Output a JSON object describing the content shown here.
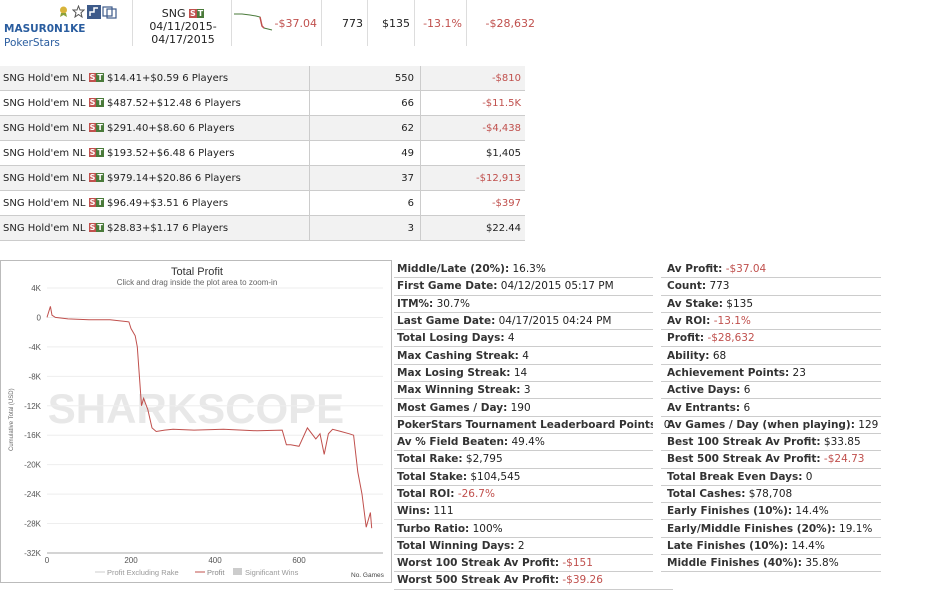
{
  "header": {
    "player_name": "MASUR0N1KE",
    "network": "PokerStars",
    "game_type": "SNG",
    "badge": [
      "S",
      "T"
    ],
    "date_from": "04/11/2015-",
    "date_to": "04/17/2015",
    "av_profit": "-$37.04",
    "count": "773",
    "av_stake": "$135",
    "av_roi": "-13.1%",
    "profit": "-$28,632"
  },
  "games": [
    {
      "name": "SNG Hold'em NL",
      "stake": "$14.41+$0.59 6 Players",
      "count": "550",
      "profit": "-$810",
      "negative": true
    },
    {
      "name": "SNG Hold'em NL",
      "stake": "$487.52+$12.48 6 Players",
      "count": "66",
      "profit": "-$11.5K",
      "negative": true
    },
    {
      "name": "SNG Hold'em NL",
      "stake": "$291.40+$8.60 6 Players",
      "count": "62",
      "profit": "-$4,438",
      "negative": true
    },
    {
      "name": "SNG Hold'em NL",
      "stake": "$193.52+$6.48 6 Players",
      "count": "49",
      "profit": "$1,405",
      "negative": false
    },
    {
      "name": "SNG Hold'em NL",
      "stake": "$979.14+$20.86 6 Players",
      "count": "37",
      "profit": "-$12,913",
      "negative": true
    },
    {
      "name": "SNG Hold'em NL",
      "stake": "$96.49+$3.51 6 Players",
      "count": "6",
      "profit": "-$397",
      "negative": true
    },
    {
      "name": "SNG Hold'em NL",
      "stake": "$28.83+$1.17 6 Players",
      "count": "3",
      "profit": "$22.44",
      "negative": false
    }
  ],
  "chart": {
    "title": "Total Profit",
    "subtitle": "Click and drag inside the plot area to zoom-in",
    "ylabel": "Cumulative Total (USD)",
    "watermark": "SHARKSCOPE",
    "xaxis_note": "No. Games",
    "legend": [
      "Profit Excluding Rake",
      "Profit",
      "Significant Wins"
    ],
    "y_ticks": [
      "4K",
      "0",
      "-4K",
      "-8K",
      "-12K",
      "-16K",
      "-20K",
      "-24K",
      "-28K",
      "-32K"
    ],
    "x_ticks": [
      "0",
      "200",
      "400",
      "600"
    ]
  },
  "chart_data": {
    "type": "line",
    "title": "Total Profit",
    "xlabel": "No. Games",
    "ylabel": "Cumulative Total (USD)",
    "xlim": [
      0,
      773
    ],
    "ylim": [
      -32000,
      4000
    ],
    "series": [
      {
        "name": "Profit",
        "x": [
          0,
          8,
          12,
          20,
          50,
          100,
          150,
          195,
          200,
          210,
          215,
          220,
          225,
          230,
          240,
          250,
          260,
          280,
          300,
          350,
          420,
          500,
          560,
          570,
          580,
          600,
          620,
          640,
          650,
          660,
          670,
          680,
          700,
          720,
          730,
          740,
          750,
          760,
          770,
          773
        ],
        "y": [
          0,
          1500,
          300,
          0,
          -200,
          -300,
          -300,
          -600,
          -1500,
          -2500,
          -4000,
          -8000,
          -12000,
          -11000,
          -12500,
          -15000,
          -15500,
          -15300,
          -15200,
          -15300,
          -15200,
          -15400,
          -15300,
          -17300,
          -17300,
          -17500,
          -15000,
          -16500,
          -15800,
          -18600,
          -15800,
          -15200,
          -15500,
          -15800,
          -16000,
          -21000,
          -24000,
          -28500,
          -26500,
          -28632
        ]
      }
    ],
    "grid": true
  },
  "stats_col1": [
    {
      "label": "Middle/Late (20%):",
      "value": "16.3%",
      "negative": false
    },
    {
      "label": "First Game Date:",
      "value": "04/12/2015 05:17 PM",
      "negative": false
    },
    {
      "label": "ITM%:",
      "value": "30.7%",
      "negative": false
    },
    {
      "label": "Last Game Date:",
      "value": "04/17/2015 04:24 PM",
      "negative": false
    },
    {
      "label": "Total Losing Days:",
      "value": "4",
      "negative": false
    },
    {
      "label": "Max Cashing Streak:",
      "value": "4",
      "negative": false
    },
    {
      "label": "Max Losing Streak:",
      "value": "14",
      "negative": false
    },
    {
      "label": "Max Winning Streak:",
      "value": "3",
      "negative": false
    },
    {
      "label": "Most Games / Day:",
      "value": "190",
      "negative": false
    },
    {
      "label": "PokerStars Tournament Leaderboard Points:",
      "value": "0",
      "negative": false
    },
    {
      "label": "Av % Field Beaten:",
      "value": "49.4%",
      "negative": false
    },
    {
      "label": "Total Rake:",
      "value": "$2,795",
      "negative": false
    },
    {
      "label": "Total Stake:",
      "value": "$104,545",
      "negative": false
    },
    {
      "label": "Total ROI:",
      "value": "-26.7%",
      "negative": true
    },
    {
      "label": "Wins:",
      "value": "111",
      "negative": false
    },
    {
      "label": "Turbo Ratio:",
      "value": "100%",
      "negative": false
    },
    {
      "label": "Total Winning Days:",
      "value": "2",
      "negative": false
    },
    {
      "label": "Worst 100 Streak Av Profit:",
      "value": "-$151",
      "negative": true
    },
    {
      "label": "Worst 500 Streak Av Profit:",
      "value": "-$39.26",
      "negative": true
    }
  ],
  "stats_col2": [
    {
      "label": "Av Profit:",
      "value": "-$37.04",
      "negative": true
    },
    {
      "label": "Count:",
      "value": "773",
      "negative": false
    },
    {
      "label": "Av Stake:",
      "value": "$135",
      "negative": false
    },
    {
      "label": "Av ROI:",
      "value": "-13.1%",
      "negative": true
    },
    {
      "label": "Profit:",
      "value": "-$28,632",
      "negative": true
    },
    {
      "label": "Ability:",
      "value": "68",
      "negative": false
    },
    {
      "label": "Achievement Points:",
      "value": "23",
      "negative": false
    },
    {
      "label": "Active Days:",
      "value": "6",
      "negative": false
    },
    {
      "label": "Av Entrants:",
      "value": "6",
      "negative": false
    },
    {
      "label": "Av Games / Day (when playing):",
      "value": "129",
      "negative": false
    },
    {
      "label": "Best 100 Streak Av Profit:",
      "value": "$33.85",
      "negative": false
    },
    {
      "label": "Best 500 Streak Av Profit:",
      "value": "-$24.73",
      "negative": true
    },
    {
      "label": "Total Break Even Days:",
      "value": "0",
      "negative": false
    },
    {
      "label": "Total Cashes:",
      "value": "$78,708",
      "negative": false
    },
    {
      "label": "Early Finishes (10%):",
      "value": "14.4%",
      "negative": false
    },
    {
      "label": "Early/Middle Finishes (20%):",
      "value": "19.1%",
      "negative": false
    },
    {
      "label": "Late Finishes (10%):",
      "value": "14.4%",
      "negative": false
    },
    {
      "label": "Middle Finishes (40%):",
      "value": "35.8%",
      "negative": false
    }
  ],
  "colors": {
    "profit_line": "#c0504d",
    "negative_text": "#c0504d",
    "link": "#2a5d9f"
  },
  "icons": [
    "award-icon",
    "star-icon",
    "tree-icon",
    "compare-icon"
  ]
}
